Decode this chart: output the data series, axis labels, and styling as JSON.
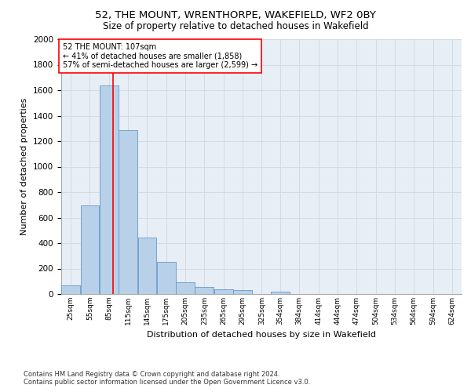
{
  "title1": "52, THE MOUNT, WRENTHORPE, WAKEFIELD, WF2 0BY",
  "title2": "Size of property relative to detached houses in Wakefield",
  "xlabel": "Distribution of detached houses by size in Wakefield",
  "ylabel": "Number of detached properties",
  "bar_color": "#b8d0e8",
  "bar_edge_color": "#6699cc",
  "annotation_line_color": "red",
  "annotation_text_line1": "52 THE MOUNT: 107sqm",
  "annotation_text_line2": "← 41% of detached houses are smaller (1,858)",
  "annotation_text_line3": "57% of semi-detached houses are larger (2,599) →",
  "property_size": 107,
  "categories": [
    "25sqm",
    "55sqm",
    "85sqm",
    "115sqm",
    "145sqm",
    "175sqm",
    "205sqm",
    "235sqm",
    "265sqm",
    "295sqm",
    "325sqm",
    "354sqm",
    "384sqm",
    "414sqm",
    "444sqm",
    "474sqm",
    "504sqm",
    "534sqm",
    "564sqm",
    "594sqm",
    "624sqm"
  ],
  "bin_starts": [
    25,
    55,
    85,
    115,
    145,
    175,
    205,
    235,
    265,
    295,
    325,
    354,
    384,
    414,
    444,
    474,
    504,
    534,
    564,
    594,
    624
  ],
  "bin_width": 30,
  "values": [
    65,
    695,
    1640,
    1285,
    445,
    255,
    90,
    55,
    35,
    28,
    0,
    18,
    0,
    0,
    0,
    0,
    0,
    0,
    0,
    0,
    0
  ],
  "ylim": [
    0,
    2000
  ],
  "yticks": [
    0,
    200,
    400,
    600,
    800,
    1000,
    1200,
    1400,
    1600,
    1800,
    2000
  ],
  "footer_line1": "Contains HM Land Registry data © Crown copyright and database right 2024.",
  "footer_line2": "Contains public sector information licensed under the Open Government Licence v3.0.",
  "background_color": "#ffffff",
  "plot_bg_color": "#e8eef5",
  "grid_color": "#d0d8e0"
}
